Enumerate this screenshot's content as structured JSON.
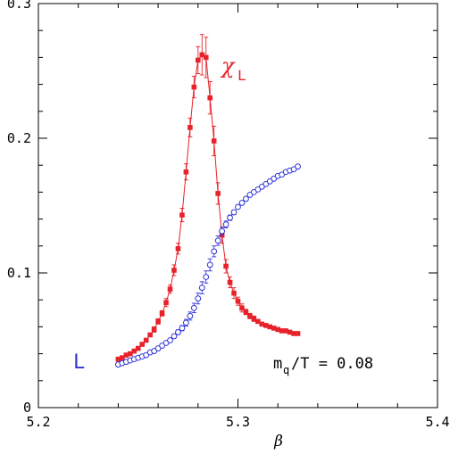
{
  "chart_data": {
    "type": "scatter",
    "title": "",
    "xlabel": "β",
    "ylabel": "",
    "xlim": [
      5.2,
      5.4
    ],
    "ylim": [
      0,
      0.3
    ],
    "xticks": [
      "5.2",
      "5.3",
      "5.4"
    ],
    "yticks": [
      "0",
      "0.1",
      "0.2",
      "0.3"
    ],
    "grid": false,
    "colors": {
      "chi": "#e8222a",
      "L": "#2f35d6"
    },
    "annotations": {
      "chi_main": "χ",
      "chi_sub": "L",
      "L_label": "L",
      "mq_main": "m",
      "mq_sub": "q",
      "mq_rest": "/T = 0.08"
    },
    "series": [
      {
        "name": "χ_L",
        "marker": "filled-square",
        "line": true,
        "points": [
          [
            5.24,
            0.036,
            0.001
          ],
          [
            5.242,
            0.037,
            0.001
          ],
          [
            5.244,
            0.039,
            0.001
          ],
          [
            5.246,
            0.04,
            0.001
          ],
          [
            5.248,
            0.042,
            0.001
          ],
          [
            5.25,
            0.044,
            0.001
          ],
          [
            5.252,
            0.047,
            0.001
          ],
          [
            5.254,
            0.05,
            0.001
          ],
          [
            5.256,
            0.054,
            0.001
          ],
          [
            5.258,
            0.058,
            0.002
          ],
          [
            5.26,
            0.064,
            0.002
          ],
          [
            5.262,
            0.07,
            0.002
          ],
          [
            5.264,
            0.078,
            0.003
          ],
          [
            5.266,
            0.088,
            0.003
          ],
          [
            5.268,
            0.102,
            0.004
          ],
          [
            5.27,
            0.118,
            0.004
          ],
          [
            5.272,
            0.143,
            0.005
          ],
          [
            5.274,
            0.175,
            0.006
          ],
          [
            5.276,
            0.208,
            0.007
          ],
          [
            5.278,
            0.238,
            0.008
          ],
          [
            5.28,
            0.258,
            0.01
          ],
          [
            5.282,
            0.262,
            0.015
          ],
          [
            5.284,
            0.26,
            0.015
          ],
          [
            5.286,
            0.23,
            0.012
          ],
          [
            5.288,
            0.198,
            0.011
          ],
          [
            5.29,
            0.159,
            0.008
          ],
          [
            5.292,
            0.128,
            0.006
          ],
          [
            5.294,
            0.105,
            0.005
          ],
          [
            5.296,
            0.093,
            0.004
          ],
          [
            5.298,
            0.085,
            0.004
          ],
          [
            5.3,
            0.079,
            0.003
          ],
          [
            5.302,
            0.074,
            0.003
          ],
          [
            5.304,
            0.071,
            0.002
          ],
          [
            5.306,
            0.068,
            0.002
          ],
          [
            5.308,
            0.066,
            0.002
          ],
          [
            5.31,
            0.064,
            0.001
          ],
          [
            5.312,
            0.062,
            0.001
          ],
          [
            5.314,
            0.061,
            0.001
          ],
          [
            5.316,
            0.06,
            0.001
          ],
          [
            5.318,
            0.059,
            0.001
          ],
          [
            5.32,
            0.058,
            0.001
          ],
          [
            5.322,
            0.057,
            0.001
          ],
          [
            5.324,
            0.057,
            0.001
          ],
          [
            5.326,
            0.056,
            0.001
          ],
          [
            5.328,
            0.055,
            0.001
          ],
          [
            5.33,
            0.055,
            0.001
          ]
        ]
      },
      {
        "name": "L",
        "marker": "open-circle",
        "line": false,
        "points": [
          [
            5.24,
            0.032,
            0.0004
          ],
          [
            5.242,
            0.033,
            0.0004
          ],
          [
            5.244,
            0.034,
            0.0004
          ],
          [
            5.246,
            0.035,
            0.0004
          ],
          [
            5.248,
            0.036,
            0.0005
          ],
          [
            5.25,
            0.037,
            0.0005
          ],
          [
            5.252,
            0.038,
            0.0005
          ],
          [
            5.254,
            0.039,
            0.0005
          ],
          [
            5.256,
            0.041,
            0.0006
          ],
          [
            5.258,
            0.042,
            0.0006
          ],
          [
            5.26,
            0.044,
            0.0007
          ],
          [
            5.262,
            0.046,
            0.0008
          ],
          [
            5.264,
            0.048,
            0.001
          ],
          [
            5.266,
            0.05,
            0.0012
          ],
          [
            5.268,
            0.053,
            0.0014
          ],
          [
            5.27,
            0.056,
            0.0017
          ],
          [
            5.272,
            0.059,
            0.002
          ],
          [
            5.274,
            0.063,
            0.0025
          ],
          [
            5.276,
            0.068,
            0.003
          ],
          [
            5.278,
            0.074,
            0.0035
          ],
          [
            5.28,
            0.081,
            0.004
          ],
          [
            5.282,
            0.089,
            0.0045
          ],
          [
            5.284,
            0.097,
            0.0045
          ],
          [
            5.286,
            0.106,
            0.0045
          ],
          [
            5.288,
            0.116,
            0.004
          ],
          [
            5.29,
            0.124,
            0.0035
          ],
          [
            5.292,
            0.131,
            0.003
          ],
          [
            5.294,
            0.136,
            0.0025
          ],
          [
            5.296,
            0.141,
            0.002
          ],
          [
            5.298,
            0.145,
            0.0016
          ],
          [
            5.3,
            0.149,
            0.0012
          ],
          [
            5.302,
            0.152,
            0.001
          ],
          [
            5.304,
            0.155,
            0.0008
          ],
          [
            5.306,
            0.158,
            0.0007
          ],
          [
            5.308,
            0.16,
            0.0006
          ],
          [
            5.31,
            0.162,
            0.0005
          ],
          [
            5.312,
            0.164,
            0.0005
          ],
          [
            5.314,
            0.166,
            0.0005
          ],
          [
            5.316,
            0.168,
            0.0004
          ],
          [
            5.318,
            0.17,
            0.0004
          ],
          [
            5.32,
            0.172,
            0.0004
          ],
          [
            5.322,
            0.173,
            0.0004
          ],
          [
            5.324,
            0.175,
            0.0004
          ],
          [
            5.326,
            0.176,
            0.0004
          ],
          [
            5.328,
            0.177,
            0.0004
          ],
          [
            5.33,
            0.179,
            0.0004
          ]
        ]
      }
    ]
  }
}
